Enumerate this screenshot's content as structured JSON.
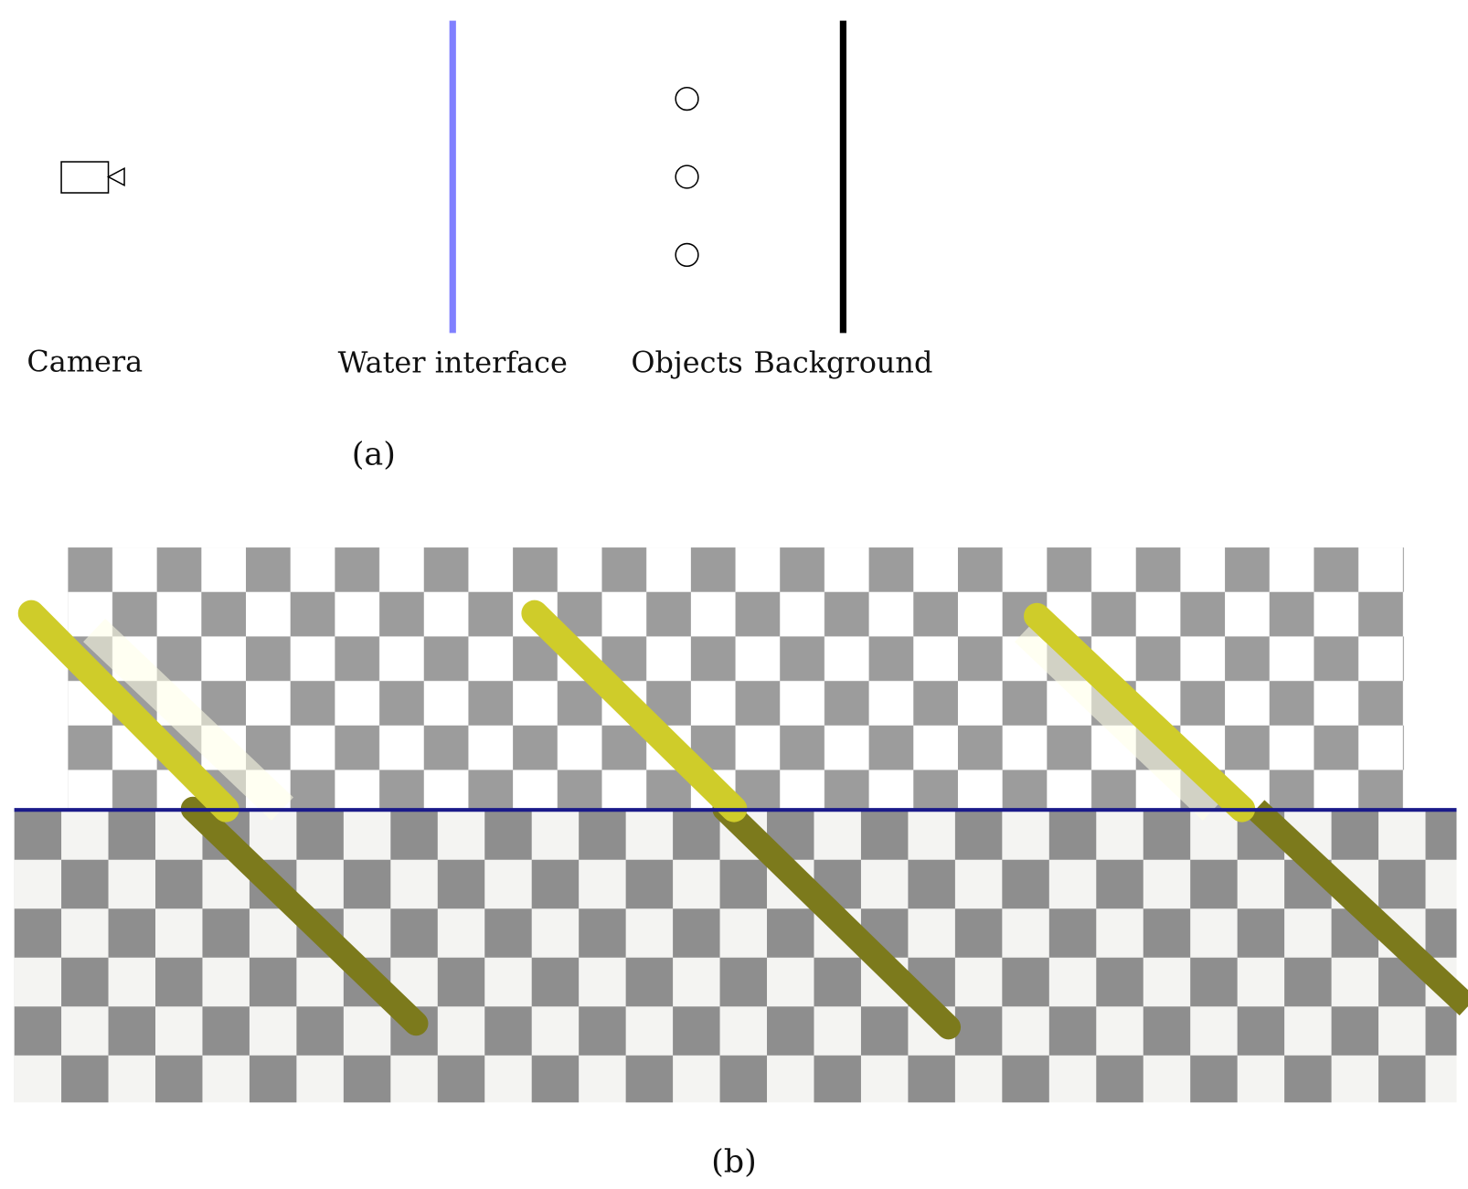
{
  "diagram": {
    "labels": [
      "Camera",
      "Water interface",
      "Objects",
      "Background"
    ],
    "panels": [
      "(a)",
      "(b)"
    ]
  }
}
